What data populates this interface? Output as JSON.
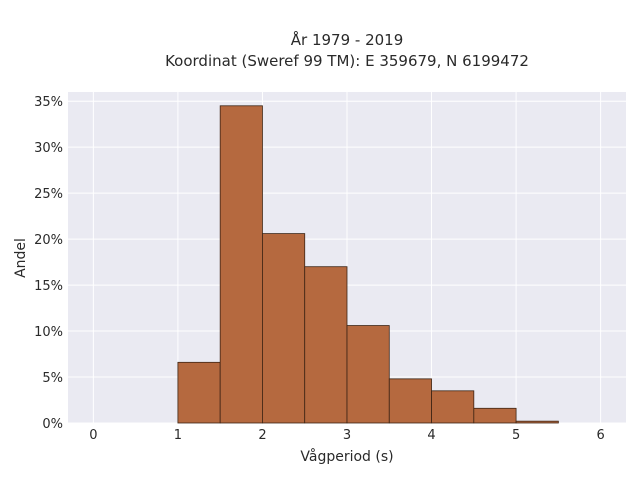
{
  "chart_data": {
    "type": "bar",
    "title_line1": "År 1979 - 2019",
    "title_line2": "Koordinat (Sweref 99 TM): E 359679, N 6199472",
    "xlabel": "Vågperiod (s)",
    "ylabel": "Andel",
    "xlim": [
      -0.3,
      6.3
    ],
    "ylim": [
      0,
      0.36
    ],
    "xticks": [
      0,
      1,
      2,
      3,
      4,
      5,
      6
    ],
    "xtick_labels": [
      "0",
      "1",
      "2",
      "3",
      "4",
      "5",
      "6"
    ],
    "yticks": [
      0,
      0.05,
      0.1,
      0.15,
      0.2,
      0.25,
      0.3,
      0.35
    ],
    "ytick_labels": [
      "0%",
      "5%",
      "10%",
      "15%",
      "20%",
      "25%",
      "30%",
      "35%"
    ],
    "bins": [
      {
        "x0": 1.0,
        "x1": 1.5,
        "value": 0.066
      },
      {
        "x0": 1.5,
        "x1": 2.0,
        "value": 0.345
      },
      {
        "x0": 2.0,
        "x1": 2.5,
        "value": 0.206
      },
      {
        "x0": 2.5,
        "x1": 3.0,
        "value": 0.17
      },
      {
        "x0": 3.0,
        "x1": 3.5,
        "value": 0.106
      },
      {
        "x0": 3.5,
        "x1": 4.0,
        "value": 0.048
      },
      {
        "x0": 4.0,
        "x1": 4.5,
        "value": 0.035
      },
      {
        "x0": 4.5,
        "x1": 5.0,
        "value": 0.016
      },
      {
        "x0": 5.0,
        "x1": 5.5,
        "value": 0.002
      }
    ],
    "grid": true,
    "colors": {
      "bar_fill": "#b5693f",
      "bar_edge": "#3d2414",
      "plot_background": "#eaeaf2",
      "grid": "#ffffff"
    }
  }
}
